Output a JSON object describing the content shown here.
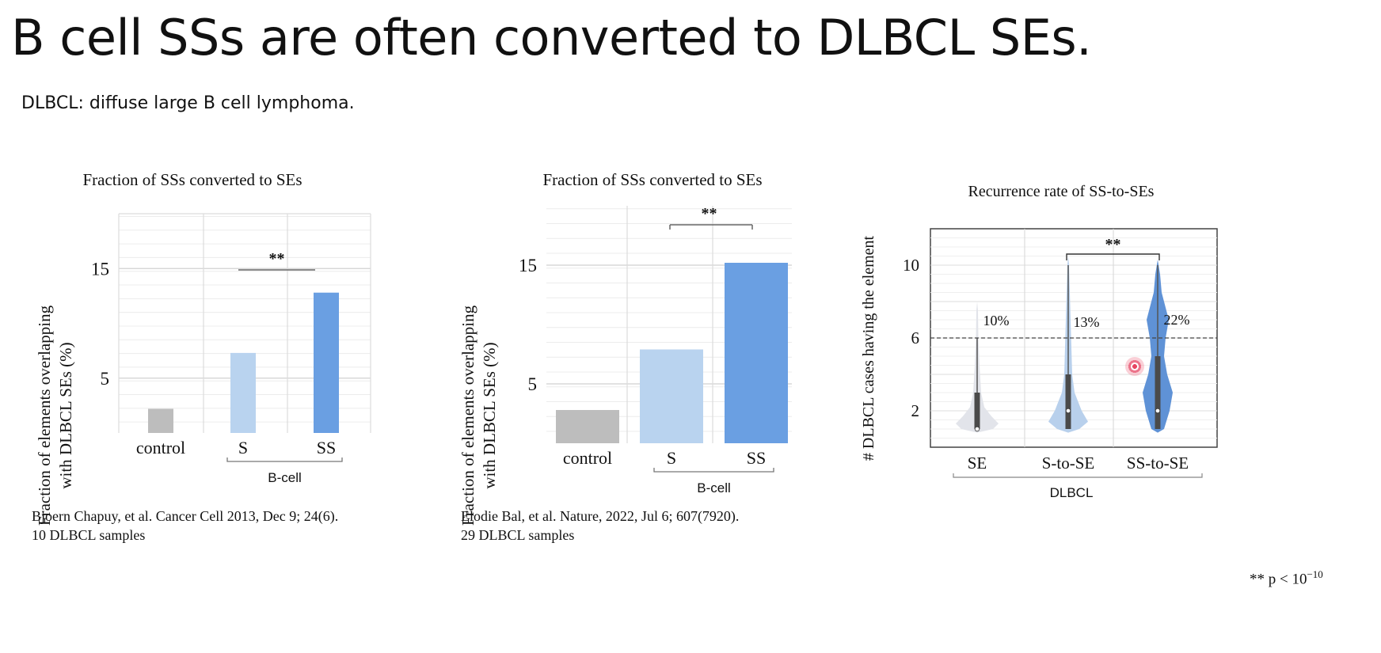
{
  "title": "B cell SSs are often converted to DLBCL SEs.",
  "subtitle": "DLBCL: diffuse large B cell lymphoma.",
  "significance_marker": "**",
  "p_note": {
    "prefix": "** p < 10",
    "exponent": "−10"
  },
  "colors": {
    "control": "#bdbdbd",
    "S": "#b9d3ef",
    "SS": "#6a9fe2",
    "SE_violin": "#e2e4ea",
    "S_to_SE_violin": "#b8d0ec",
    "SS_to_SE_violin": "#5f92d6"
  },
  "chart_data": [
    {
      "type": "bar",
      "title": "Fraction of SSs converted to SEs",
      "ylabel": "Fraction of elements overlapping with DLBCL SEs (%)",
      "ylabel_lines": [
        "Fraction of elements overlapping",
        "with DLBCL SEs (%)"
      ],
      "categories": [
        "control",
        "S",
        "SS"
      ],
      "values": [
        2.2,
        7.3,
        12.8
      ],
      "group_label": "B-cell",
      "ylim": [
        0,
        20
      ],
      "yticks": [
        5,
        15
      ],
      "grid": true,
      "significance": {
        "between": [
          "S",
          "SS"
        ],
        "label": "**"
      },
      "citation": [
        "Bjoern Chapuy, et al. Cancer Cell 2013, Dec 9; 24(6).",
        "10 DLBCL samples"
      ]
    },
    {
      "type": "bar",
      "title": "Fraction of SSs converted to SEs",
      "ylabel": "Fraction of elements overlapping with DLBCL SEs (%)",
      "ylabel_lines": [
        "Fraction of elements overlapping",
        "with DLBCL SEs (%)"
      ],
      "categories": [
        "control",
        "S",
        "SS"
      ],
      "values": [
        2.8,
        7.9,
        15.2
      ],
      "group_label": "B-cell",
      "ylim": [
        0,
        20
      ],
      "yticks": [
        5,
        15
      ],
      "grid": true,
      "significance": {
        "between": [
          "S",
          "SS"
        ],
        "label": "**"
      },
      "citation": [
        "Elodie Bal, et al. Nature, 2022, Jul 6; 607(7920).",
        "29 DLBCL samples"
      ]
    },
    {
      "type": "violin",
      "title": "Recurrence rate of SS-to-SEs",
      "ylabel": "# DLBCL cases having the element",
      "categories": [
        "SE",
        "S-to-SE",
        "SS-to-SE"
      ],
      "group_label": "DLBCL",
      "ylim": [
        0,
        12
      ],
      "yticks": [
        2,
        6,
        10
      ],
      "reference_line": 6,
      "percent_labels": [
        "10%",
        "13%",
        "22%"
      ],
      "violins": [
        {
          "category": "SE",
          "min": 1,
          "q1": 1,
          "median": 1,
          "q3": 3,
          "max": 6
        },
        {
          "category": "S-to-SE",
          "min": 1,
          "q1": 1,
          "median": 2,
          "q3": 4,
          "max": 10
        },
        {
          "category": "SS-to-SE",
          "min": 1,
          "q1": 1,
          "median": 2,
          "q3": 5,
          "max": 10
        }
      ],
      "significance": {
        "between": [
          "S-to-SE",
          "SS-to-SE"
        ],
        "label": "**"
      }
    }
  ]
}
